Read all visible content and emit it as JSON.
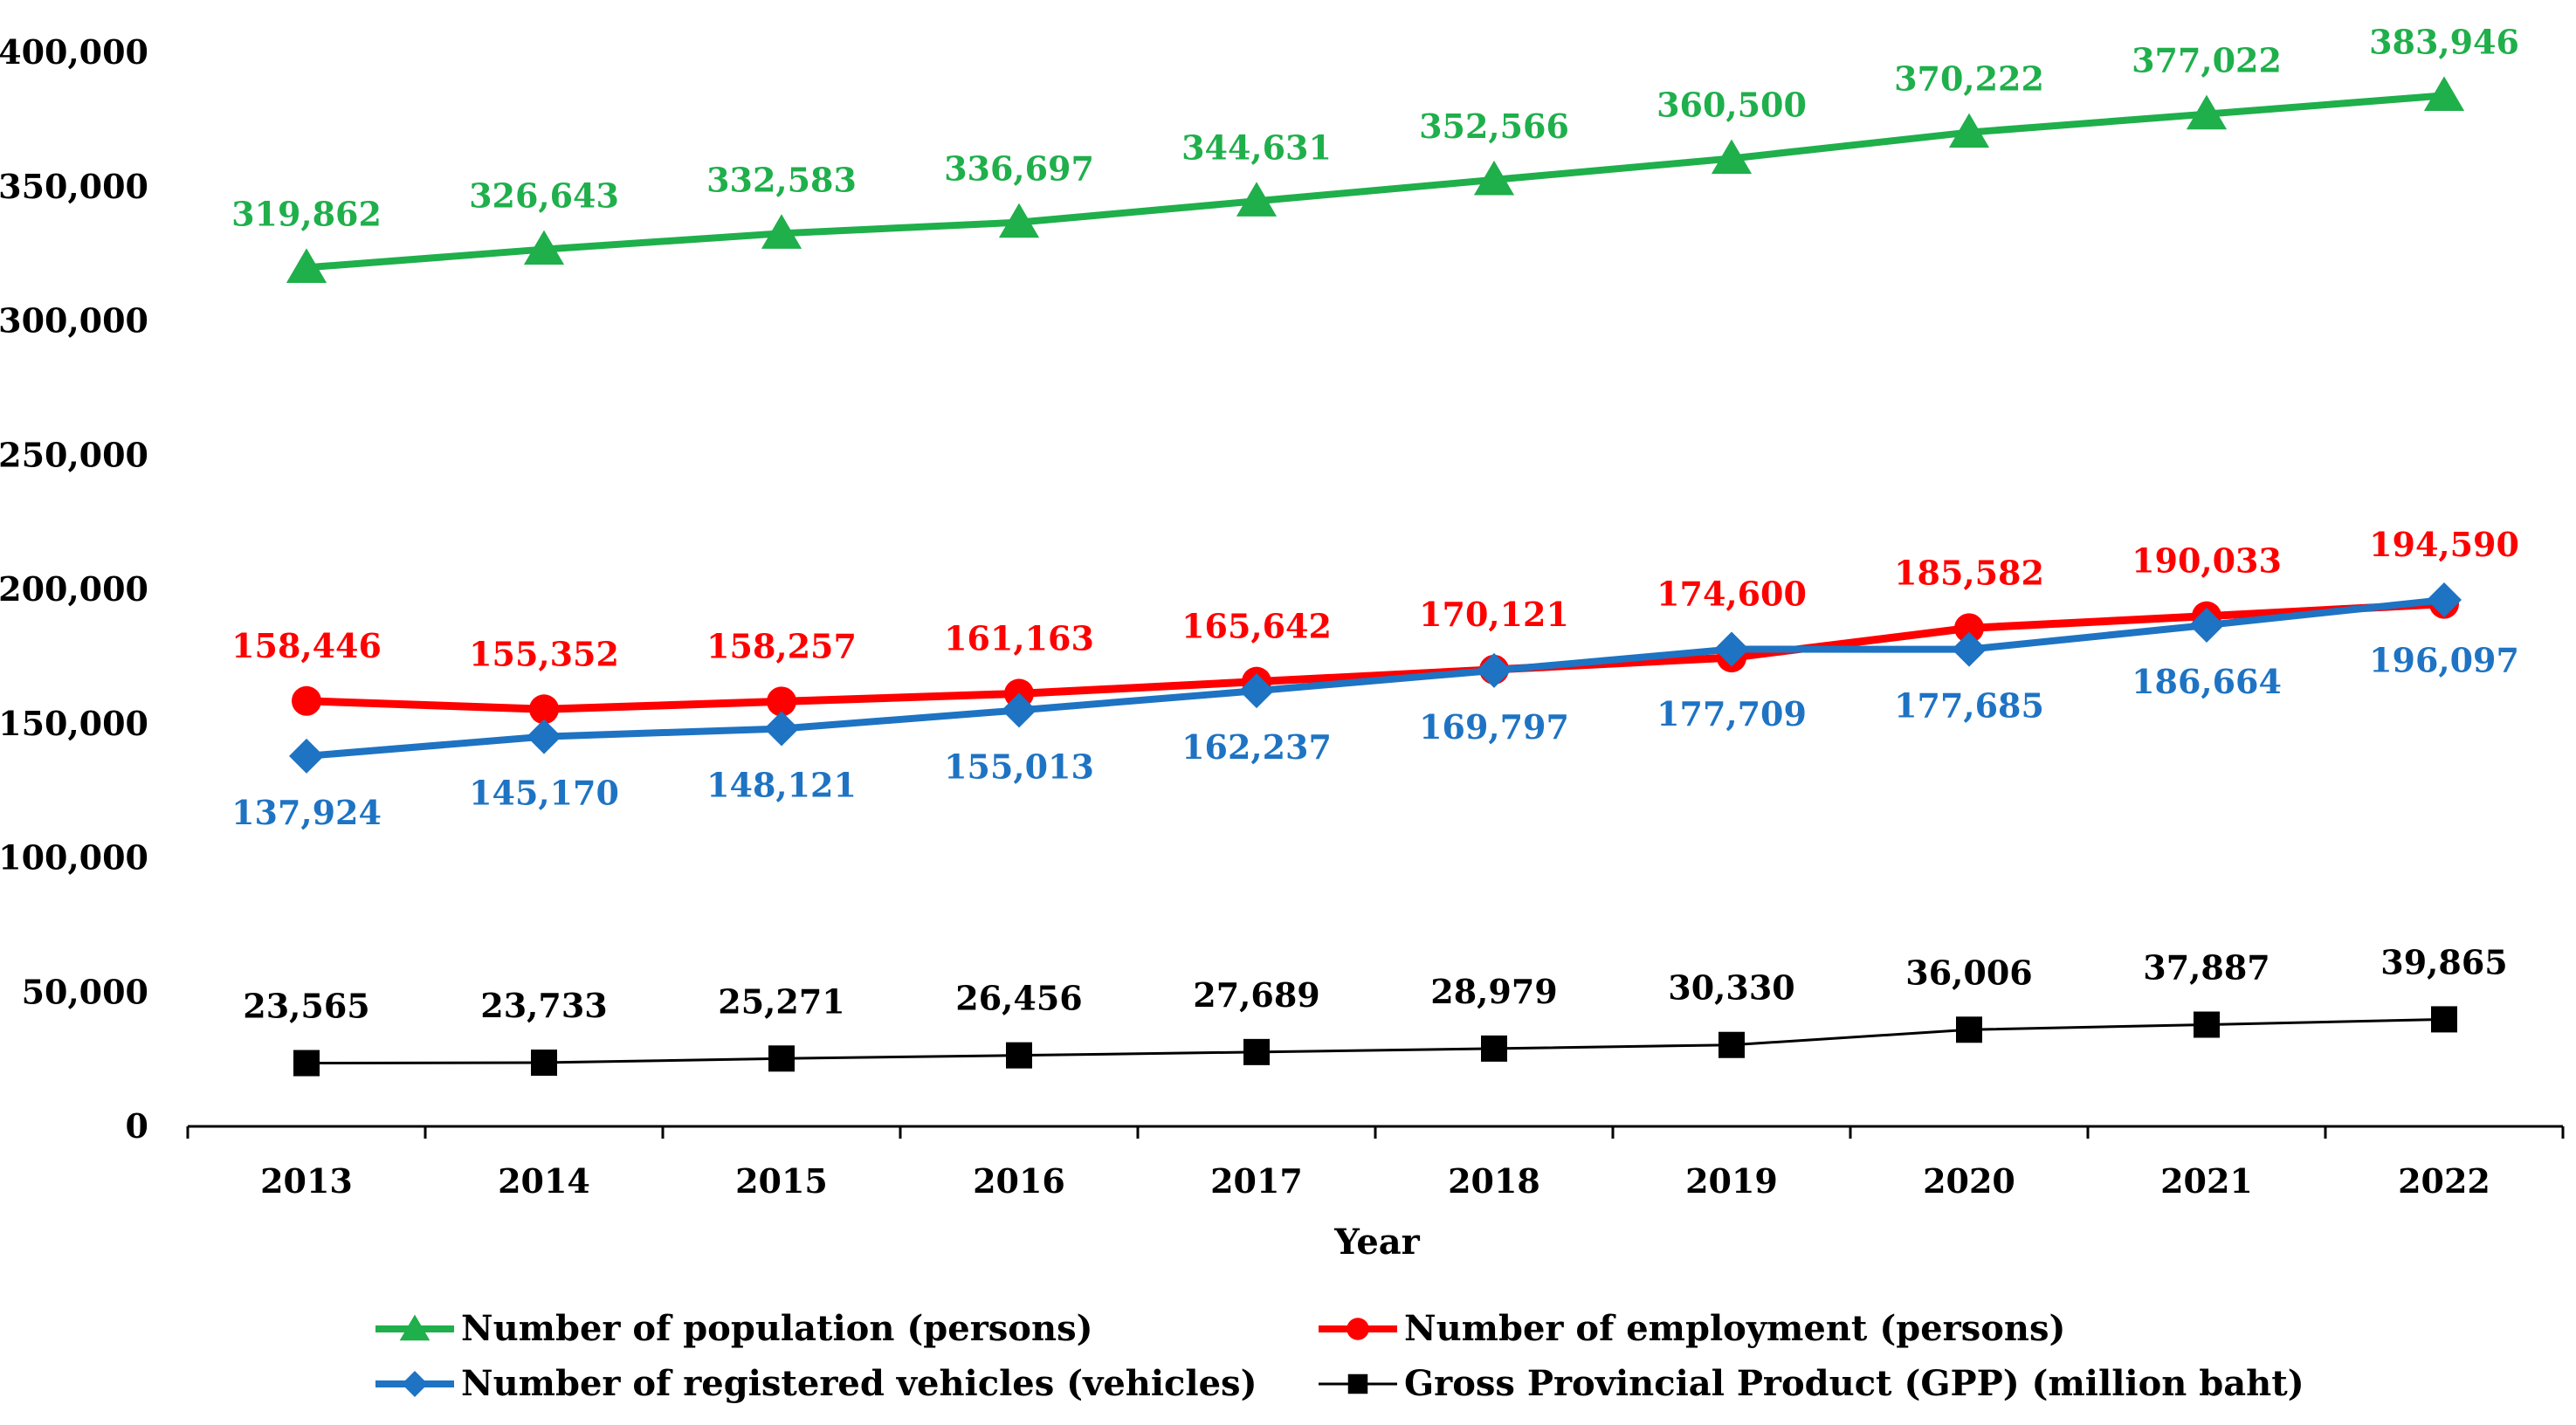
{
  "chart_data": {
    "type": "line",
    "title": "",
    "xlabel": "Year",
    "ylabel": "",
    "ylim": [
      0,
      400000
    ],
    "yticks": [
      "0",
      "50,000",
      "100,000",
      "150,000",
      "200,000",
      "250,000",
      "300,000",
      "350,000",
      "400,000"
    ],
    "ytick_values": [
      0,
      50000,
      100000,
      150000,
      200000,
      250000,
      300000,
      350000,
      400000
    ],
    "categories": [
      "2013",
      "2014",
      "2015",
      "2016",
      "2017",
      "2018",
      "2019",
      "2020",
      "2021",
      "2022"
    ],
    "grid": false,
    "legend_position": "bottom",
    "series": [
      {
        "key": "population",
        "name": "Number of population (persons)",
        "color": "#1faf4b",
        "marker": "triangle",
        "values": [
          319862,
          326643,
          332583,
          336697,
          344631,
          352566,
          360500,
          370222,
          377022,
          383946
        ],
        "labels": [
          "319,862",
          "326,643",
          "332,583",
          "336,697",
          "344,631",
          "352,566",
          "360,500",
          "370,222",
          "377,022",
          "383,946"
        ]
      },
      {
        "key": "employment",
        "name": "Number of employment (persons)",
        "color": "#ff0000",
        "marker": "circle",
        "values": [
          158446,
          155352,
          158257,
          161163,
          165642,
          170121,
          174600,
          185582,
          190033,
          194590
        ],
        "labels": [
          "158,446",
          "155,352",
          "158,257",
          "161,163",
          "165,642",
          "170,121",
          "174,600",
          "185,582",
          "190,033",
          "194,590"
        ]
      },
      {
        "key": "vehicles",
        "name": "Number of registered vehicles (vehicles)",
        "color": "#1e73c3",
        "marker": "diamond",
        "values": [
          137924,
          145170,
          148121,
          155013,
          162237,
          169797,
          177709,
          177685,
          186664,
          196097
        ],
        "labels": [
          "137,924",
          "145,170",
          "148,121",
          "155,013",
          "162,237",
          "169,797",
          "177,709",
          "177,685",
          "186,664",
          "196,097"
        ]
      },
      {
        "key": "gpp",
        "name": "Gross Provincial Product (GPP) (million baht)",
        "color": "#000000",
        "marker": "square",
        "values": [
          23565,
          23733,
          25271,
          26456,
          27689,
          28979,
          30330,
          36006,
          37887,
          39865
        ],
        "labels": [
          "23,565",
          "23,733",
          "25,271",
          "26,456",
          "27,689",
          "28,979",
          "30,330",
          "36,006",
          "37,887",
          "39,865"
        ]
      }
    ]
  }
}
